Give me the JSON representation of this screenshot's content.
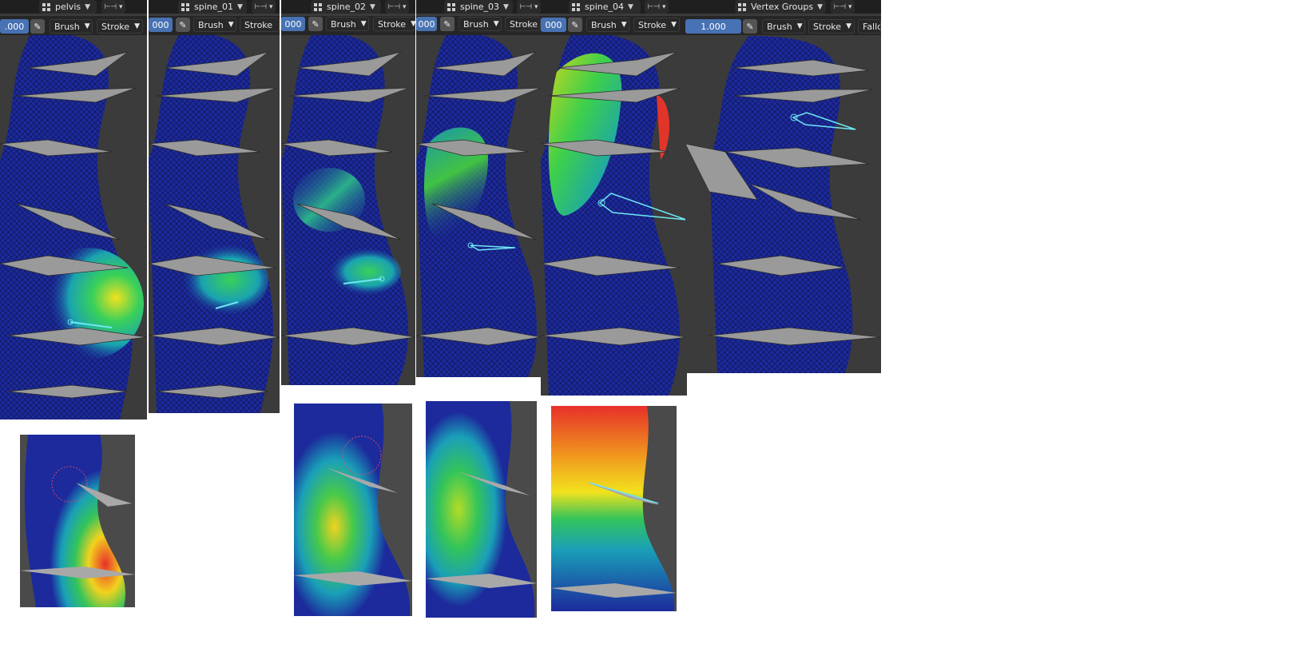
{
  "panels": [
    {
      "id": "pelvis",
      "group": "pelvis",
      "weight": ".000"
    },
    {
      "id": "spine01",
      "group": "spine_01",
      "weight": "000"
    },
    {
      "id": "spine02",
      "group": "spine_02",
      "weight": "000"
    },
    {
      "id": "spine03",
      "group": "spine_03",
      "weight": "000"
    },
    {
      "id": "spine04",
      "group": "spine_04",
      "weight": "000"
    },
    {
      "id": "vgroups",
      "group": "Vertex Groups",
      "weight": "1.000"
    }
  ],
  "toolbar": {
    "brush": "Brush",
    "stroke": "Stroke",
    "falloff": "Fallo"
  },
  "icons": {
    "group": "vertex-group-icon",
    "pen": "pen-pressure-icon",
    "bone": "bone-icon"
  },
  "colors": {
    "mesh": "#1c2a9c",
    "bone": "#9a9a9a",
    "selected": "#6fe7f5",
    "viewport": "#3b3b3b"
  }
}
